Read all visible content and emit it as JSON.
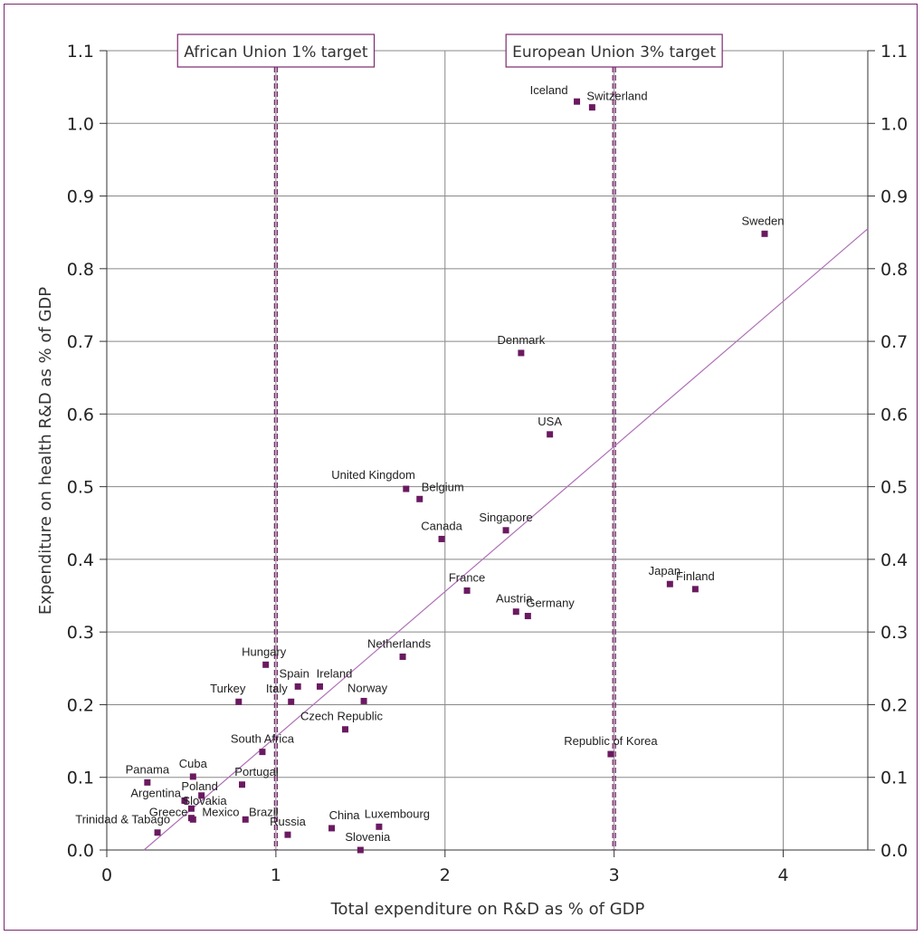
{
  "chart_data": {
    "type": "scatter",
    "xlabel": "Total expenditure on R&D as % of GDP",
    "ylabel": "Expenditure on health R&D as % of GDP",
    "xlim": [
      0,
      4.5
    ],
    "ylim": [
      0,
      1.1
    ],
    "x_ticks": [
      "0",
      "1",
      "2",
      "3",
      "4"
    ],
    "y_ticks": [
      "0.0",
      "0.1",
      "0.2",
      "0.3",
      "0.4",
      "0.5",
      "0.6",
      "0.7",
      "0.8",
      "0.9",
      "1.0",
      "1.1"
    ],
    "grid": true,
    "trendline": {
      "x": [
        0.22,
        4.5
      ],
      "y": [
        0.0,
        0.855
      ]
    },
    "reference_lines": [
      {
        "x": 1,
        "label": "African Union 1% target"
      },
      {
        "x": 3,
        "label": "European Union 3% target"
      }
    ],
    "points": [
      {
        "label": "Iceland",
        "x": 2.78,
        "y": 1.03
      },
      {
        "label": "Switzerland",
        "x": 2.87,
        "y": 1.022
      },
      {
        "label": "Sweden",
        "x": 3.89,
        "y": 0.848
      },
      {
        "label": "Denmark",
        "x": 2.45,
        "y": 0.684
      },
      {
        "label": "USA",
        "x": 2.62,
        "y": 0.572
      },
      {
        "label": "United Kingdom",
        "x": 1.77,
        "y": 0.497
      },
      {
        "label": "Belgium",
        "x": 1.85,
        "y": 0.483
      },
      {
        "label": "Canada",
        "x": 1.98,
        "y": 0.428
      },
      {
        "label": "Singapore",
        "x": 2.36,
        "y": 0.44
      },
      {
        "label": "Japan",
        "x": 3.33,
        "y": 0.366
      },
      {
        "label": "Finland",
        "x": 3.48,
        "y": 0.359
      },
      {
        "label": "France",
        "x": 2.13,
        "y": 0.357
      },
      {
        "label": "Austria",
        "x": 2.42,
        "y": 0.328
      },
      {
        "label": "Germany",
        "x": 2.49,
        "y": 0.322
      },
      {
        "label": "Netherlands",
        "x": 1.75,
        "y": 0.266
      },
      {
        "label": "Hungary",
        "x": 0.94,
        "y": 0.255
      },
      {
        "label": "Spain",
        "x": 1.13,
        "y": 0.225
      },
      {
        "label": "Ireland",
        "x": 1.26,
        "y": 0.225
      },
      {
        "label": "Turkey",
        "x": 0.78,
        "y": 0.204
      },
      {
        "label": "Italy",
        "x": 1.09,
        "y": 0.204
      },
      {
        "label": "Norway",
        "x": 1.52,
        "y": 0.205
      },
      {
        "label": "Czech Republic",
        "x": 1.41,
        "y": 0.166
      },
      {
        "label": "South Africa",
        "x": 0.92,
        "y": 0.135
      },
      {
        "label": "Republic of Korea",
        "x": 2.98,
        "y": 0.132
      },
      {
        "label": "Panama",
        "x": 0.24,
        "y": 0.093
      },
      {
        "label": "Cuba",
        "x": 0.51,
        "y": 0.101
      },
      {
        "label": "Portugal",
        "x": 0.8,
        "y": 0.09
      },
      {
        "label": "Argentina",
        "x": 0.46,
        "y": 0.068
      },
      {
        "label": "Poland",
        "x": 0.56,
        "y": 0.075
      },
      {
        "label": "Slovakia",
        "x": 0.5,
        "y": 0.057
      },
      {
        "label": "Greece",
        "x": 0.5,
        "y": 0.044
      },
      {
        "label": "Mexico",
        "x": 0.51,
        "y": 0.042
      },
      {
        "label": "Brazil",
        "x": 0.82,
        "y": 0.042
      },
      {
        "label": "Trinidad & Tabago",
        "x": 0.3,
        "y": 0.024
      },
      {
        "label": "Russia",
        "x": 1.07,
        "y": 0.021
      },
      {
        "label": "China",
        "x": 1.33,
        "y": 0.03
      },
      {
        "label": "Luxembourg",
        "x": 1.61,
        "y": 0.032
      },
      {
        "label": "Slovenia",
        "x": 1.5,
        "y": 0.0
      }
    ]
  },
  "colors": {
    "marker": "#6a1a60",
    "trendline": "#b070b8",
    "reference_line": "#7a2a6e",
    "frame": "#7a2a6e",
    "grid": "#888888"
  }
}
